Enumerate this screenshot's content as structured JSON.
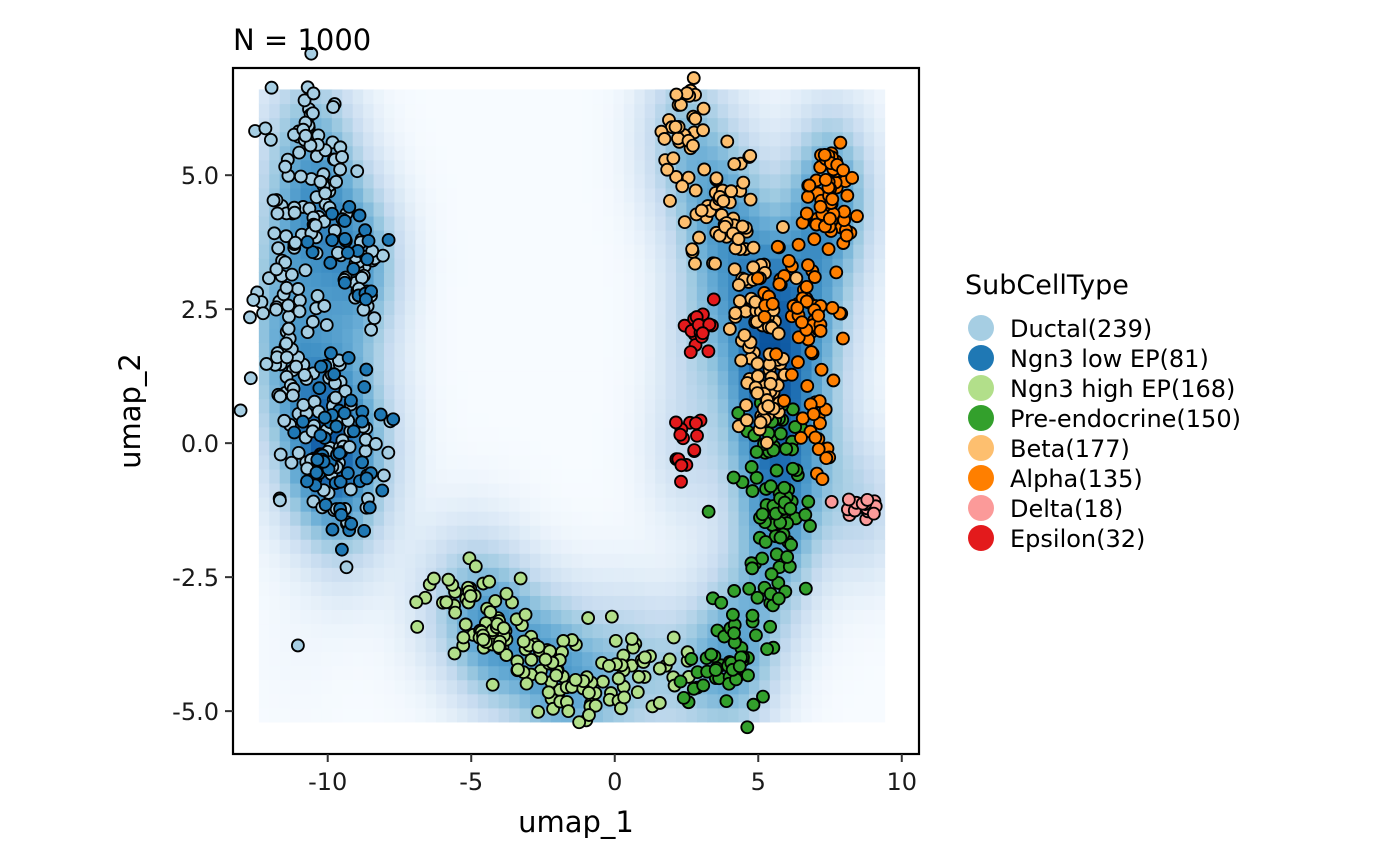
{
  "chart_data": {
    "type": "scatter",
    "title": "N = 1000",
    "xlabel": "umap_1",
    "ylabel": "umap_2",
    "xlim": [
      -13.3,
      10.6
    ],
    "ylim": [
      -5.8,
      7.0
    ],
    "x_ticks": [
      -10,
      -5,
      0,
      5,
      10
    ],
    "x_tick_labels": [
      "-10",
      "-5",
      "0",
      "5",
      "10"
    ],
    "y_ticks": [
      -5.0,
      -2.5,
      0.0,
      2.5,
      5.0
    ],
    "y_tick_labels": [
      "-5.0",
      "-2.5",
      "0.0",
      "2.5",
      "5.0"
    ],
    "grid": false,
    "density_background": {
      "colormap": [
        "#f7fbff",
        "#deebf7",
        "#c6dbef",
        "#9ecae1",
        "#6baed6",
        "#4292c6",
        "#2171b5",
        "#08519c"
      ],
      "x_range": [
        -12.4,
        9.4
      ],
      "y_range": [
        -5.2,
        6.6
      ]
    },
    "legend": {
      "title": "SubCellType",
      "position": "right",
      "items": [
        {
          "label": "Ductal(239)",
          "color": "#A6CEE3"
        },
        {
          "label": "Ngn3 low EP(81)",
          "color": "#1F78B4"
        },
        {
          "label": "Ngn3 high EP(168)",
          "color": "#B2DF8A"
        },
        {
          "label": "Pre-endocrine(150)",
          "color": "#33A02C"
        },
        {
          "label": "Beta(177)",
          "color": "#FDBF6F"
        },
        {
          "label": "Alpha(135)",
          "color": "#FF7F00"
        },
        {
          "label": "Delta(18)",
          "color": "#FB9A99"
        },
        {
          "label": "Epsilon(32)",
          "color": "#E31A1C"
        }
      ]
    },
    "series": [
      {
        "name": "Ductal(239)",
        "color": "#A6CEE3",
        "count": 239,
        "regions": [
          {
            "cx": -10.6,
            "cy": 5.1,
            "sx": 0.7,
            "sy": 0.9,
            "w": 0.3
          },
          {
            "cx": -11.2,
            "cy": 2.3,
            "sx": 0.6,
            "sy": 1.2,
            "w": 0.25
          },
          {
            "cx": -9.8,
            "cy": 0.0,
            "sx": 0.8,
            "sy": 0.9,
            "w": 0.35
          },
          {
            "cx": -8.8,
            "cy": 3.1,
            "sx": 0.3,
            "sy": 0.4,
            "w": 0.1
          }
        ]
      },
      {
        "name": "Ngn3 low EP(81)",
        "color": "#1F78B4",
        "count": 81,
        "regions": [
          {
            "cx": -9.6,
            "cy": -0.3,
            "sx": 0.8,
            "sy": 0.9,
            "w": 0.7
          },
          {
            "cx": -9.4,
            "cy": 3.6,
            "sx": 0.6,
            "sy": 0.6,
            "w": 0.3
          }
        ]
      },
      {
        "name": "Ngn3 high EP(168)",
        "color": "#B2DF8A",
        "count": 168,
        "regions": [
          {
            "cx": -5.6,
            "cy": -2.7,
            "sx": 0.9,
            "sy": 0.4,
            "w": 0.2
          },
          {
            "cx": -4.3,
            "cy": -3.4,
            "sx": 0.7,
            "sy": 0.4,
            "w": 0.2
          },
          {
            "cx": -2.6,
            "cy": -4.1,
            "sx": 0.8,
            "sy": 0.4,
            "w": 0.25
          },
          {
            "cx": -0.8,
            "cy": -4.8,
            "sx": 0.8,
            "sy": 0.3,
            "w": 0.2
          },
          {
            "cx": 1.2,
            "cy": -4.1,
            "sx": 0.9,
            "sy": 0.4,
            "w": 0.15
          }
        ]
      },
      {
        "name": "Pre-endocrine(150)",
        "color": "#33A02C",
        "count": 150,
        "regions": [
          {
            "cx": 3.8,
            "cy": -4.1,
            "sx": 0.6,
            "sy": 0.4,
            "w": 0.25
          },
          {
            "cx": 5.2,
            "cy": -2.6,
            "sx": 0.5,
            "sy": 0.6,
            "w": 0.3
          },
          {
            "cx": 5.6,
            "cy": -1.2,
            "sx": 0.5,
            "sy": 0.5,
            "w": 0.25
          },
          {
            "cx": 5.4,
            "cy": 0.0,
            "sx": 0.6,
            "sy": 0.4,
            "w": 0.2
          }
        ]
      },
      {
        "name": "Beta(177)",
        "color": "#FDBF6F",
        "count": 177,
        "regions": [
          {
            "cx": 2.4,
            "cy": 5.9,
            "sx": 0.4,
            "sy": 0.5,
            "w": 0.2
          },
          {
            "cx": 3.8,
            "cy": 4.4,
            "sx": 0.6,
            "sy": 0.5,
            "w": 0.3
          },
          {
            "cx": 5.0,
            "cy": 2.7,
            "sx": 0.6,
            "sy": 0.6,
            "w": 0.3
          },
          {
            "cx": 5.3,
            "cy": 0.8,
            "sx": 0.4,
            "sy": 0.5,
            "w": 0.2
          }
        ]
      },
      {
        "name": "Alpha(135)",
        "color": "#FF7F00",
        "count": 135,
        "regions": [
          {
            "cx": 7.5,
            "cy": 4.6,
            "sx": 0.5,
            "sy": 0.6,
            "w": 0.45
          },
          {
            "cx": 6.5,
            "cy": 2.6,
            "sx": 0.7,
            "sy": 0.8,
            "w": 0.4
          },
          {
            "cx": 7.1,
            "cy": 0.4,
            "sx": 0.3,
            "sy": 0.6,
            "w": 0.15
          }
        ]
      },
      {
        "name": "Delta(18)",
        "color": "#FB9A99",
        "count": 18,
        "regions": [
          {
            "cx": 8.6,
            "cy": -1.2,
            "sx": 0.45,
            "sy": 0.12,
            "w": 1.0
          }
        ]
      },
      {
        "name": "Epsilon(32)",
        "color": "#E31A1C",
        "count": 32,
        "regions": [
          {
            "cx": 3.0,
            "cy": 2.1,
            "sx": 0.25,
            "sy": 0.25,
            "w": 0.4
          },
          {
            "cx": 2.8,
            "cy": 0.4,
            "sx": 0.25,
            "sy": 0.3,
            "w": 0.3
          },
          {
            "cx": 2.2,
            "cy": -0.4,
            "sx": 0.2,
            "sy": 0.4,
            "w": 0.3
          }
        ]
      }
    ]
  }
}
